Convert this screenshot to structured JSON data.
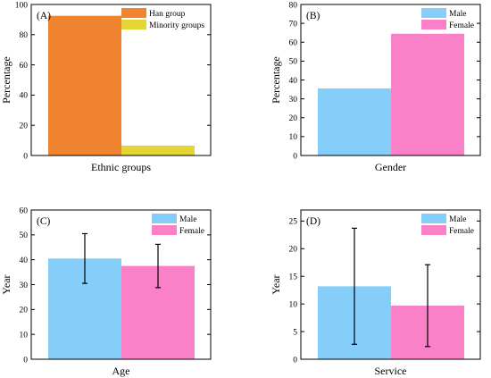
{
  "chart_data": [
    {
      "panel": "(A)",
      "type": "bar",
      "xlabel": "Ethnic groups",
      "ylabel": "Percentage",
      "ylim": [
        0,
        100
      ],
      "yticks": [
        0,
        20,
        40,
        60,
        80,
        100
      ],
      "series": [
        {
          "name": "Han group",
          "color": "#F08430",
          "value": 92.5
        },
        {
          "name": "Minority groups",
          "color": "#E2D534",
          "value": 6.5
        }
      ]
    },
    {
      "panel": "(B)",
      "type": "bar",
      "xlabel": "Gender",
      "ylabel": "Percentage",
      "ylim": [
        0,
        80
      ],
      "yticks": [
        0,
        10,
        20,
        30,
        40,
        50,
        60,
        70,
        80
      ],
      "series": [
        {
          "name": "Male",
          "color": "#85CEFA",
          "value": 35.5
        },
        {
          "name": "Female",
          "color": "#FA80C8",
          "value": 64.5
        }
      ]
    },
    {
      "panel": "(C)",
      "type": "bar",
      "xlabel": "Age",
      "ylabel": "Year",
      "ylim": [
        0,
        60
      ],
      "yticks": [
        0,
        10,
        20,
        30,
        40,
        50,
        60
      ],
      "series": [
        {
          "name": "Male",
          "color": "#85CEFA",
          "value": 40.5,
          "error": 10
        },
        {
          "name": "Female",
          "color": "#FA80C8",
          "value": 37.5,
          "error": 8.7
        }
      ]
    },
    {
      "panel": "(D)",
      "type": "bar",
      "xlabel": "Service",
      "ylabel": "Year",
      "ylim": [
        0,
        27
      ],
      "yticks": [
        0,
        5,
        10,
        15,
        20,
        25
      ],
      "series": [
        {
          "name": "Male",
          "color": "#85CEFA",
          "value": 13.2,
          "error": 10.5
        },
        {
          "name": "Female",
          "color": "#FA80C8",
          "value": 9.7,
          "error": 7.4
        }
      ]
    }
  ]
}
